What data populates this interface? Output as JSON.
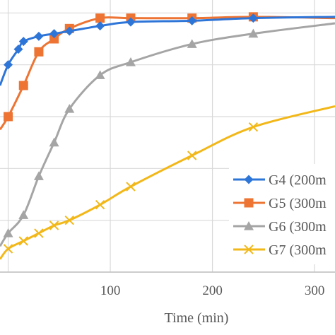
{
  "chart_data": {
    "type": "line",
    "xlabel": "Time (min)",
    "ylabel": "",
    "title": "",
    "xlim": [
      -8,
      320
    ],
    "ylim": [
      0,
      105
    ],
    "x_ticks": [
      100,
      200,
      300
    ],
    "grid": true,
    "legend_position": "right",
    "series": [
      {
        "name": "G4 (200m",
        "color": "#2e75d8",
        "marker": "diamond",
        "x": [
          -8,
          0,
          10,
          15,
          30,
          45,
          60,
          90,
          120,
          180,
          240,
          320
        ],
        "y": [
          72,
          80,
          86,
          89,
          91,
          92,
          93,
          95,
          96.5,
          97,
          98,
          98.5
        ]
      },
      {
        "name": "G5 (300m",
        "color": "#ed7433",
        "marker": "square",
        "x": [
          -8,
          0,
          15,
          30,
          45,
          60,
          90,
          120,
          180,
          240,
          320
        ],
        "y": [
          55,
          60,
          72,
          85,
          90,
          94,
          98,
          98,
          98,
          98.5,
          98
        ]
      },
      {
        "name": "G6 (300m",
        "color": "#a5a5a5",
        "marker": "triangle",
        "x": [
          -8,
          0,
          15,
          30,
          45,
          60,
          90,
          120,
          180,
          240,
          320
        ],
        "y": [
          10,
          15,
          22,
          37,
          50,
          63,
          76,
          81,
          88,
          92,
          96
        ]
      },
      {
        "name": "G7 (300m",
        "color": "#f2b81a",
        "marker": "x",
        "x": [
          -8,
          0,
          15,
          30,
          45,
          60,
          90,
          120,
          180,
          240,
          320
        ],
        "y": [
          5,
          9,
          12,
          15,
          18,
          20,
          26,
          33,
          45,
          56,
          64
        ]
      }
    ]
  }
}
